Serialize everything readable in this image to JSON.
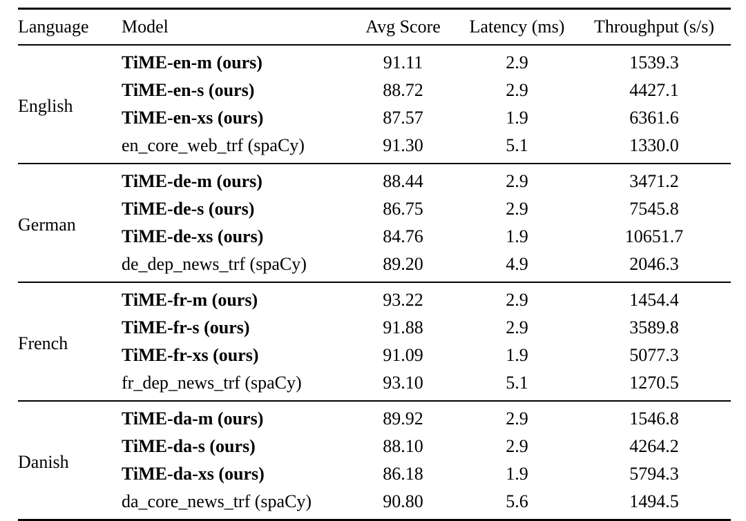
{
  "page": {
    "background": "#ffffff",
    "text_color": "#000000",
    "rule_color": "#000000"
  },
  "table": {
    "columns": [
      "Language",
      "Model",
      "Avg Score",
      "Latency (ms)",
      "Throughput (s/s)"
    ],
    "groups": [
      {
        "language": "English",
        "rows": [
          {
            "model": "TiME-en-m (ours)",
            "is_ours": true,
            "avg_score": "91.11",
            "latency_ms": "2.9",
            "throughput_ss": "1539.3"
          },
          {
            "model": "TiME-en-s (ours)",
            "is_ours": true,
            "avg_score": "88.72",
            "latency_ms": "2.9",
            "throughput_ss": "4427.1"
          },
          {
            "model": "TiME-en-xs (ours)",
            "is_ours": true,
            "avg_score": "87.57",
            "latency_ms": "1.9",
            "throughput_ss": "6361.6"
          },
          {
            "model": "en_core_web_trf (spaCy)",
            "is_ours": false,
            "avg_score": "91.30",
            "latency_ms": "5.1",
            "throughput_ss": "1330.0"
          }
        ]
      },
      {
        "language": "German",
        "rows": [
          {
            "model": "TiME-de-m (ours)",
            "is_ours": true,
            "avg_score": "88.44",
            "latency_ms": "2.9",
            "throughput_ss": "3471.2"
          },
          {
            "model": "TiME-de-s (ours)",
            "is_ours": true,
            "avg_score": "86.75",
            "latency_ms": "2.9",
            "throughput_ss": "7545.8"
          },
          {
            "model": "TiME-de-xs (ours)",
            "is_ours": true,
            "avg_score": "84.76",
            "latency_ms": "1.9",
            "throughput_ss": "10651.7"
          },
          {
            "model": "de_dep_news_trf (spaCy)",
            "is_ours": false,
            "avg_score": "89.20",
            "latency_ms": "4.9",
            "throughput_ss": "2046.3"
          }
        ]
      },
      {
        "language": "French",
        "rows": [
          {
            "model": "TiME-fr-m (ours)",
            "is_ours": true,
            "avg_score": "93.22",
            "latency_ms": "2.9",
            "throughput_ss": "1454.4"
          },
          {
            "model": "TiME-fr-s (ours)",
            "is_ours": true,
            "avg_score": "91.88",
            "latency_ms": "2.9",
            "throughput_ss": "3589.8"
          },
          {
            "model": "TiME-fr-xs (ours)",
            "is_ours": true,
            "avg_score": "91.09",
            "latency_ms": "1.9",
            "throughput_ss": "5077.3"
          },
          {
            "model": "fr_dep_news_trf (spaCy)",
            "is_ours": false,
            "avg_score": "93.10",
            "latency_ms": "5.1",
            "throughput_ss": "1270.5"
          }
        ]
      },
      {
        "language": "Danish",
        "rows": [
          {
            "model": "TiME-da-m (ours)",
            "is_ours": true,
            "avg_score": "89.92",
            "latency_ms": "2.9",
            "throughput_ss": "1546.8"
          },
          {
            "model": "TiME-da-s (ours)",
            "is_ours": true,
            "avg_score": "88.10",
            "latency_ms": "2.9",
            "throughput_ss": "4264.2"
          },
          {
            "model": "TiME-da-xs (ours)",
            "is_ours": true,
            "avg_score": "86.18",
            "latency_ms": "1.9",
            "throughput_ss": "5794.3"
          },
          {
            "model": "da_core_news_trf (spaCy)",
            "is_ours": false,
            "avg_score": "90.80",
            "latency_ms": "5.6",
            "throughput_ss": "1494.5"
          }
        ]
      }
    ]
  }
}
